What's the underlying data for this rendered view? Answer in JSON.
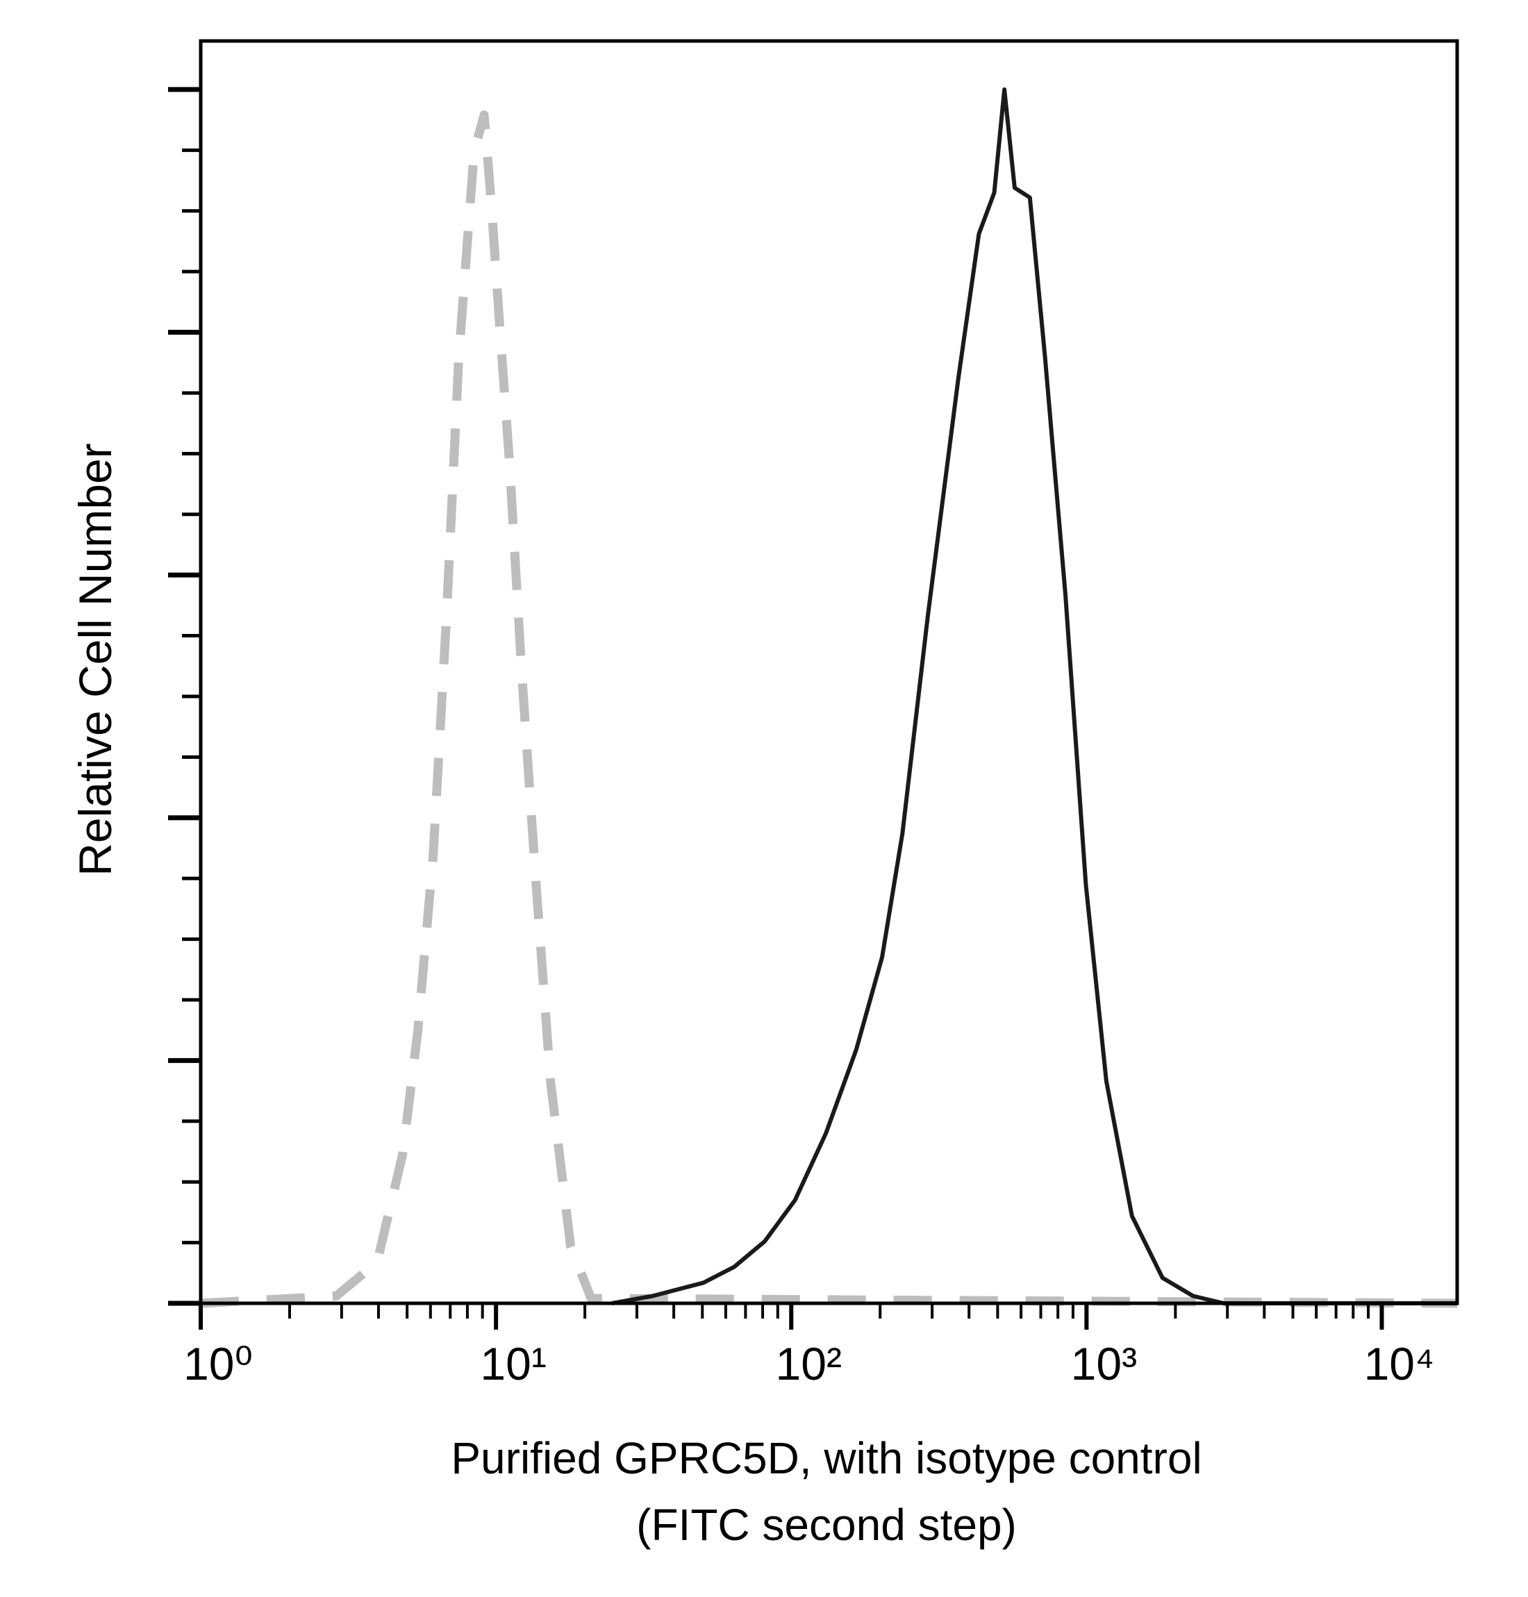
{
  "chart_data": {
    "type": "line",
    "ylabel": "Relative Cell Number",
    "xlabel": [
      "Purified GPRC5D, with isotype control",
      "(FITC second step)"
    ],
    "xscale": "log",
    "xlim": [
      1,
      18000
    ],
    "xticks": [
      {
        "value": 1,
        "label": "10⁰"
      },
      {
        "value": 10,
        "label": "10¹"
      },
      {
        "value": 100,
        "label": "10²"
      },
      {
        "value": 1000,
        "label": "10³"
      },
      {
        "value": 10000,
        "label": "10⁴"
      }
    ],
    "xminor_ticks": [
      2,
      3,
      4,
      5,
      6,
      7,
      8,
      9,
      20,
      30,
      40,
      50,
      60,
      70,
      80,
      90,
      200,
      300,
      400,
      500,
      600,
      700,
      800,
      900,
      2000,
      3000,
      4000,
      5000,
      6000,
      7000,
      8000,
      9000
    ],
    "ylim": [
      0,
      104
    ],
    "yticks": [
      0,
      20,
      40,
      60,
      80,
      100
    ],
    "yminor_ticks": [
      5,
      10,
      15,
      25,
      30,
      35,
      45,
      50,
      55,
      65,
      70,
      75,
      85,
      90,
      95
    ],
    "series": [
      {
        "color": "#bdbdbd",
        "dashed": true,
        "x": [
          1,
          2.88,
          3.96,
          4.83,
          5.44,
          6.13,
          6.8,
          7.48,
          8.43,
          9.12,
          9.64,
          10.3,
          11.1,
          12.2,
          13.6,
          15.3,
          17.9,
          21,
          18000
        ],
        "values": [
          0,
          0.6,
          3.4,
          12.3,
          22.5,
          37,
          56.6,
          77.9,
          94.9,
          97.9,
          90.6,
          80.4,
          69.4,
          52.3,
          35.3,
          18.3,
          4.7,
          0.4,
          0
        ]
      },
      {
        "color": "#1a1a1a",
        "dashed": false,
        "x": [
          24.7,
          33.9,
          50.5,
          64.1,
          81.3,
          103,
          131,
          166,
          203,
          238,
          290,
          368,
          432,
          487,
          527,
          571,
          643,
          724,
          849,
          995,
          1167,
          1425,
          1808,
          2296,
          2915,
          18000
        ],
        "values": [
          0,
          0.6,
          1.7,
          3,
          5.1,
          8.5,
          14,
          20.9,
          28.5,
          38.7,
          56.6,
          76.2,
          88.1,
          91.5,
          100,
          91.9,
          91.1,
          77.9,
          58.3,
          34.5,
          18.3,
          7.2,
          2.1,
          0.6,
          0,
          0
        ]
      }
    ]
  }
}
